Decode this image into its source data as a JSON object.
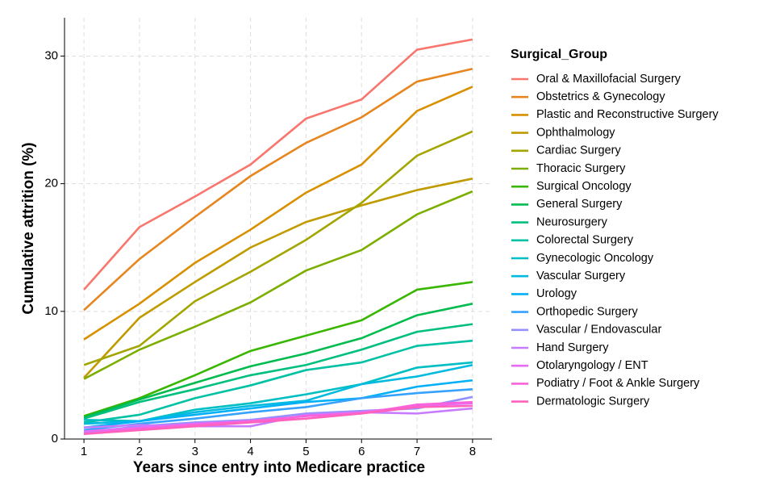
{
  "chart_data": {
    "type": "line",
    "x_label": "Years since entry into Medicare practice",
    "y_label": "Cumulative attrition (%)",
    "legend_title": "Surgical_Group",
    "x": [
      1,
      2,
      3,
      4,
      5,
      6,
      7,
      8
    ],
    "xlim": [
      0.65,
      8.35
    ],
    "xticks": [
      1,
      2,
      3,
      4,
      5,
      6,
      7,
      8
    ],
    "ylim": [
      0,
      33
    ],
    "yticks": [
      0,
      10,
      20,
      30
    ],
    "grid": true,
    "legend_position": "right",
    "series": [
      {
        "name": "Oral & Maxillofacial Surgery",
        "color": "#F8766D",
        "values": [
          11.7,
          16.6,
          19.0,
          21.5,
          25.1,
          26.6,
          30.5,
          31.3
        ]
      },
      {
        "name": "Obstetrics & Gynecology",
        "color": "#E7851E",
        "values": [
          10.1,
          14.1,
          17.4,
          20.6,
          23.2,
          25.2,
          28.0,
          29.0
        ]
      },
      {
        "name": "Plastic and Reconstructive Surgery",
        "color": "#D89000",
        "values": [
          7.8,
          10.6,
          13.8,
          16.4,
          19.3,
          21.5,
          25.7,
          27.6
        ]
      },
      {
        "name": "Ophthalmology",
        "color": "#C09B00",
        "values": [
          4.8,
          9.5,
          12.3,
          15.0,
          17.0,
          18.3,
          19.5,
          20.4
        ]
      },
      {
        "name": "Cardiac Surgery",
        "color": "#A3A500",
        "values": [
          5.8,
          7.3,
          10.8,
          13.1,
          15.6,
          18.5,
          22.2,
          24.1
        ]
      },
      {
        "name": "Thoracic Surgery",
        "color": "#7CAE00",
        "values": [
          4.7,
          7.0,
          8.8,
          10.7,
          13.2,
          14.8,
          17.6,
          19.4
        ]
      },
      {
        "name": "Surgical Oncology",
        "color": "#39B600",
        "values": [
          1.8,
          3.2,
          5.0,
          6.9,
          8.1,
          9.3,
          11.7,
          12.3
        ]
      },
      {
        "name": "General Surgery",
        "color": "#00BB4E",
        "values": [
          1.7,
          3.1,
          4.4,
          5.7,
          6.7,
          7.9,
          9.7,
          10.6
        ]
      },
      {
        "name": "Neurosurgery",
        "color": "#00BF7D",
        "values": [
          1.6,
          2.9,
          3.9,
          5.0,
          5.8,
          7.0,
          8.4,
          9.0
        ]
      },
      {
        "name": "Colorectal Surgery",
        "color": "#00C1A3",
        "values": [
          1.3,
          1.9,
          3.2,
          4.2,
          5.4,
          6.0,
          7.3,
          7.7
        ]
      },
      {
        "name": "Gynecologic Oncology",
        "color": "#00BFC4",
        "values": [
          1.5,
          1.4,
          2.3,
          2.8,
          3.5,
          4.3,
          5.6,
          6.0
        ]
      },
      {
        "name": "Vascular Surgery",
        "color": "#00BAE0",
        "values": [
          1.2,
          1.4,
          2.1,
          2.6,
          3.0,
          4.3,
          4.9,
          5.8
        ]
      },
      {
        "name": "Urology",
        "color": "#00B0F6",
        "values": [
          0.9,
          1.4,
          1.9,
          2.4,
          2.9,
          3.2,
          4.1,
          4.6
        ]
      },
      {
        "name": "Orthopedic Surgery",
        "color": "#35A2FF",
        "values": [
          0.7,
          1.2,
          1.6,
          2.1,
          2.5,
          3.2,
          3.6,
          3.9
        ]
      },
      {
        "name": "Vascular / Endovascular",
        "color": "#9590FF",
        "values": [
          0.5,
          1.0,
          1.3,
          1.5,
          2.0,
          2.2,
          2.4,
          3.3
        ]
      },
      {
        "name": "Hand Surgery",
        "color": "#C77CFF",
        "values": [
          0.9,
          1.1,
          1.0,
          1.0,
          1.9,
          2.1,
          2.0,
          2.4
        ]
      },
      {
        "name": "Otolaryngology / ENT",
        "color": "#E76BF3",
        "values": [
          0.6,
          0.9,
          1.2,
          1.4,
          1.8,
          2.1,
          2.6,
          2.8
        ]
      },
      {
        "name": "Podiatry / Foot & Ankle Surgery",
        "color": "#FA62DB",
        "values": [
          0.4,
          0.8,
          1.1,
          1.4,
          1.8,
          2.0,
          2.7,
          2.9
        ]
      },
      {
        "name": "Dermatologic Surgery",
        "color": "#FF62BC",
        "values": [
          0.4,
          0.7,
          1.0,
          1.3,
          1.6,
          2.0,
          2.5,
          2.6
        ]
      }
    ]
  }
}
